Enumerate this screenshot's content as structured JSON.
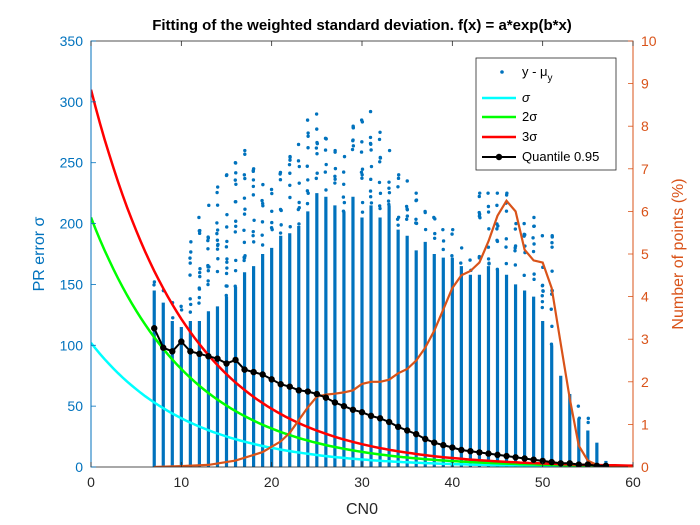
{
  "chart_data": {
    "type": "scatter",
    "title": "Fitting of the weighted standard deviation. f(x) = a*exp(b*x)",
    "xlabel": "CN0",
    "ylabel_left": "PR error σ",
    "ylabel_right": "Number of points (%)",
    "xlim": [
      0,
      60
    ],
    "ylim_left": [
      0,
      350
    ],
    "ylim_right": [
      0,
      10
    ],
    "xticks": [
      "0",
      "10",
      "20",
      "30",
      "40",
      "50",
      "60"
    ],
    "yticks_left": [
      "0",
      "50",
      "100",
      "150",
      "200",
      "250",
      "300",
      "350"
    ],
    "yticks_right": [
      "0",
      "1",
      "2",
      "3",
      "4",
      "5",
      "6",
      "7",
      "8",
      "9",
      "10"
    ],
    "colors": {
      "scatter": "#0072BD",
      "sigma": "#00FFFF",
      "sigma2": "#00FF00",
      "sigma3": "#FF0000",
      "quantile": "#000000",
      "count": "#D95319",
      "left_axis": "#0072BD",
      "right_axis": "#D95319"
    },
    "legend": {
      "position": "top-right",
      "entries": [
        "y - μ",
        "σ",
        "2σ",
        "3σ",
        "Quantile 0.95"
      ],
      "scatter_subscript": "y"
    },
    "scatter_columns": {
      "x": [
        7,
        8,
        9,
        10,
        11,
        12,
        13,
        14,
        15,
        16,
        17,
        18,
        19,
        20,
        21,
        22,
        23,
        24,
        25,
        26,
        27,
        28,
        29,
        30,
        31,
        32,
        33,
        34,
        35,
        36,
        37,
        38,
        39,
        40,
        41,
        42,
        43,
        44,
        45,
        46,
        47,
        48,
        49,
        50,
        51,
        52,
        53,
        54,
        55,
        56,
        57
      ],
      "dense_top": [
        145,
        135,
        120,
        115,
        120,
        120,
        128,
        132,
        140,
        148,
        160,
        165,
        175,
        180,
        190,
        192,
        198,
        210,
        225,
        222,
        215,
        210,
        222,
        205,
        215,
        205,
        215,
        195,
        190,
        178,
        185,
        175,
        172,
        172,
        165,
        158,
        158,
        165,
        162,
        158,
        150,
        145,
        140,
        120,
        100,
        75,
        60,
        40,
        30,
        20,
        5
      ],
      "max": [
        152,
        145,
        135,
        132,
        185,
        205,
        215,
        230,
        240,
        250,
        260,
        245,
        232,
        228,
        242,
        255,
        265,
        285,
        290,
        270,
        260,
        255,
        280,
        285,
        292,
        275,
        260,
        240,
        235,
        225,
        210,
        205,
        195,
        195,
        180,
        170,
        225,
        225,
        225,
        225,
        200,
        200,
        205,
        190,
        190,
        70,
        40,
        50,
        40,
        20,
        5
      ]
    },
    "sigma": {
      "a": 102,
      "b": -0.0935
    },
    "sigma2": {
      "a": 205,
      "b": -0.0935
    },
    "sigma3": {
      "a": 310,
      "b": -0.0935
    },
    "quantile_095": {
      "x": [
        7,
        8,
        9,
        10,
        11,
        12,
        13,
        14,
        15,
        16,
        17,
        18,
        19,
        20,
        21,
        22,
        23,
        24,
        25,
        26,
        27,
        28,
        29,
        30,
        31,
        32,
        33,
        34,
        35,
        36,
        37,
        38,
        39,
        40,
        41,
        42,
        43,
        44,
        45,
        46,
        47,
        48,
        49,
        50,
        51,
        52,
        53,
        54,
        55,
        56,
        57
      ],
      "y": [
        114,
        98,
        95,
        103,
        95,
        93,
        91,
        89,
        85,
        88,
        80,
        78,
        76,
        72,
        68,
        66,
        63,
        62,
        60,
        57,
        53,
        50,
        47,
        45,
        42,
        40,
        37,
        33,
        30,
        27,
        23,
        20,
        18,
        16,
        14,
        13,
        12,
        11,
        10,
        9,
        8,
        7,
        6,
        5,
        4,
        3,
        3,
        2,
        2,
        1,
        1
      ]
    },
    "points_percent": {
      "x": [
        7,
        10,
        13,
        16,
        19,
        21,
        22,
        23,
        24,
        25,
        26,
        27,
        28,
        29,
        30,
        31,
        32,
        33,
        34,
        35,
        36,
        37,
        38,
        39,
        40,
        41,
        42,
        43,
        44,
        45,
        46,
        47,
        48,
        49,
        50,
        51,
        52,
        53,
        54,
        55,
        56,
        57
      ],
      "y": [
        0.0,
        0.02,
        0.05,
        0.15,
        0.35,
        0.6,
        0.8,
        1.1,
        1.4,
        1.65,
        1.7,
        1.72,
        1.75,
        1.8,
        1.95,
        2.0,
        2.0,
        2.05,
        2.2,
        2.3,
        2.5,
        2.8,
        3.2,
        3.7,
        4.2,
        4.5,
        4.6,
        4.8,
        5.3,
        5.9,
        6.25,
        6.0,
        5.1,
        4.85,
        4.8,
        4.2,
        2.9,
        1.6,
        0.5,
        0.15,
        0.05,
        0.0
      ]
    }
  }
}
